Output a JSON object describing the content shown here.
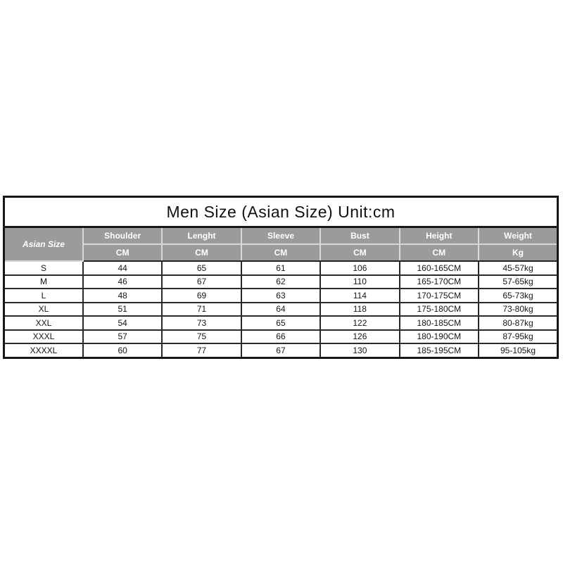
{
  "chart_data": {
    "type": "table",
    "title": "Men Size (Asian Size) Unit:cm",
    "corner_header": "Asian Size",
    "columns": [
      {
        "label": "Shoulder",
        "unit": "CM"
      },
      {
        "label": "Lenght",
        "unit": "CM"
      },
      {
        "label": "Sleeve",
        "unit": "CM"
      },
      {
        "label": "Bust",
        "unit": "CM"
      },
      {
        "label": "Height",
        "unit": "CM"
      },
      {
        "label": "Weight",
        "unit": "Kg"
      }
    ],
    "rows": [
      {
        "size": "S",
        "values": [
          "44",
          "65",
          "61",
          "106",
          "160-165CM",
          "45-57kg"
        ]
      },
      {
        "size": "M",
        "values": [
          "46",
          "67",
          "62",
          "110",
          "165-170CM",
          "57-65kg"
        ]
      },
      {
        "size": "L",
        "values": [
          "48",
          "69",
          "63",
          "114",
          "170-175CM",
          "65-73kg"
        ]
      },
      {
        "size": "XL",
        "values": [
          "51",
          "71",
          "64",
          "118",
          "175-180CM",
          "73-80kg"
        ]
      },
      {
        "size": "XXL",
        "values": [
          "54",
          "73",
          "65",
          "122",
          "180-185CM",
          "80-87kg"
        ]
      },
      {
        "size": "XXXL",
        "values": [
          "57",
          "75",
          "66",
          "126",
          "180-190CM",
          "87-95kg"
        ]
      },
      {
        "size": "XXXXL",
        "values": [
          "60",
          "77",
          "67",
          "130",
          "185-195CM",
          "95-105kg"
        ]
      }
    ],
    "layout_hints": {
      "header_bg": "#9b9b9b",
      "header_text_color": "#ffffff",
      "header_divider_color": "#d9d9d9",
      "outer_border_color": "#171717",
      "inner_border_color": "#2a2a2a",
      "grid": "on"
    }
  }
}
